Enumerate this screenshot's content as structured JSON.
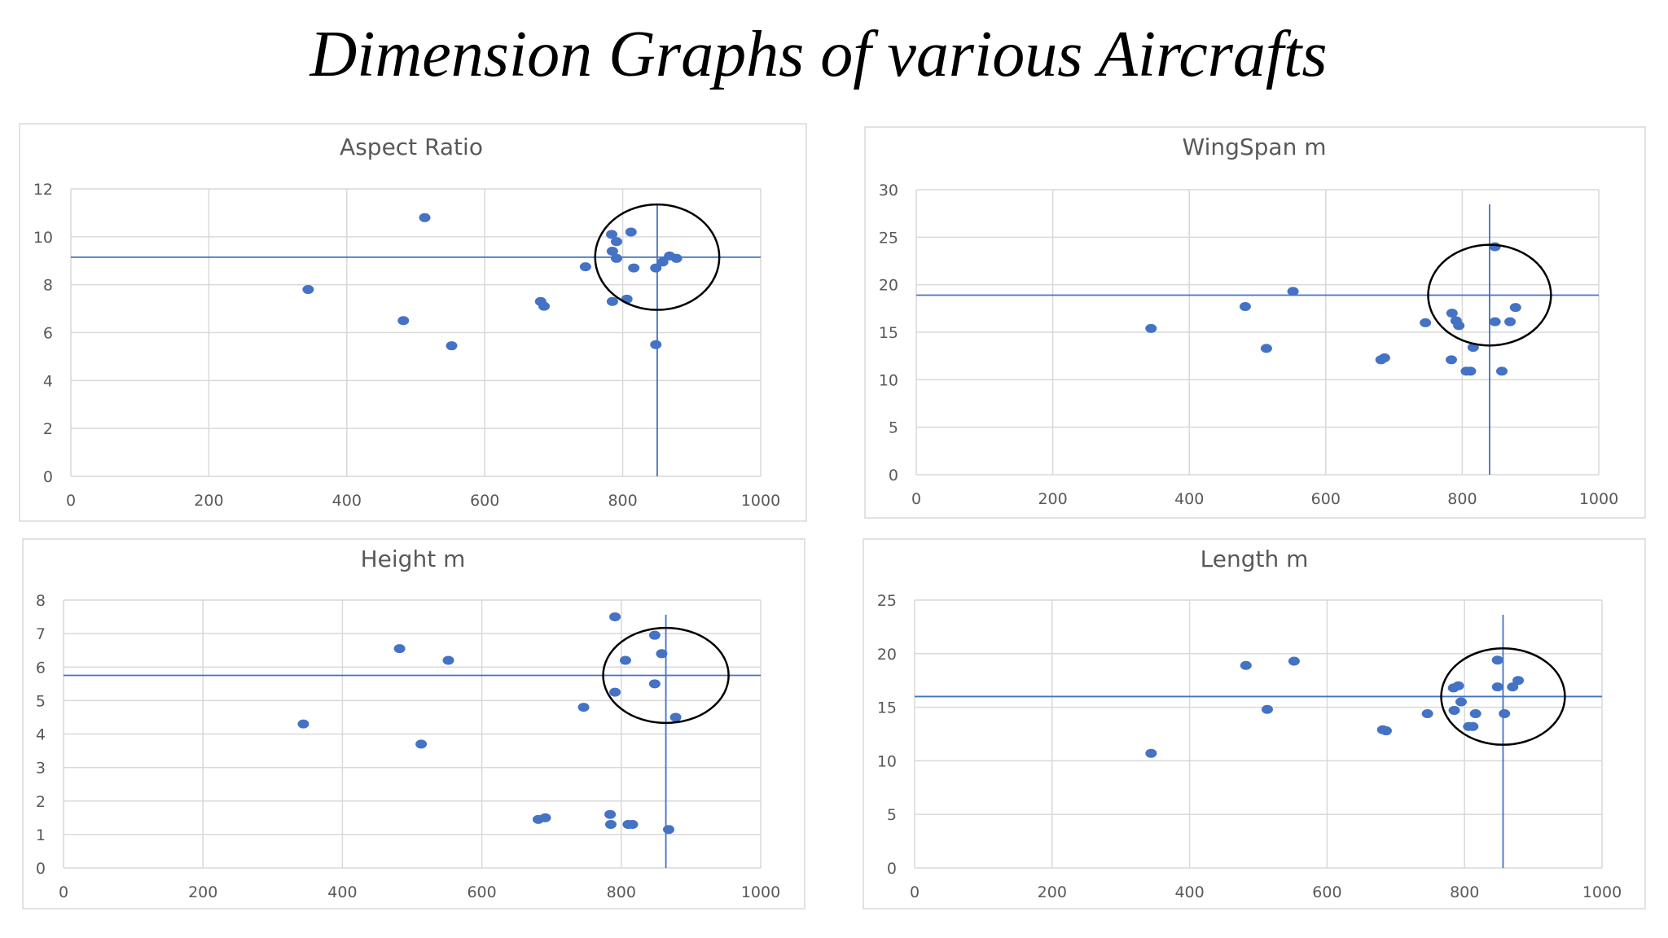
{
  "page": {
    "title": "Dimension Graphs of various Aircrafts"
  },
  "colors": {
    "point": "#4472C4",
    "reference_line": "#4472C4",
    "gridline": "#D9D9D9",
    "axis_text": "#595959",
    "title_text": "#595959",
    "highlight_circle": "#000000"
  },
  "chart_data": [
    {
      "type": "scatter",
      "title": "Aspect Ratio",
      "xlim": [
        0,
        1000
      ],
      "ylim": [
        0,
        12
      ],
      "xticks": [
        0,
        200,
        400,
        600,
        800,
        1000
      ],
      "yticks": [
        0,
        2,
        4,
        6,
        8,
        10,
        12
      ],
      "grid": true,
      "points": [
        {
          "x": 344,
          "y": 7.8
        },
        {
          "x": 482,
          "y": 6.5
        },
        {
          "x": 513,
          "y": 10.8
        },
        {
          "x": 552,
          "y": 5.45
        },
        {
          "x": 681,
          "y": 7.3
        },
        {
          "x": 686,
          "y": 7.1
        },
        {
          "x": 746,
          "y": 8.75
        },
        {
          "x": 784,
          "y": 10.1
        },
        {
          "x": 785,
          "y": 9.4
        },
        {
          "x": 785,
          "y": 7.3
        },
        {
          "x": 791,
          "y": 9.8
        },
        {
          "x": 791,
          "y": 9.1
        },
        {
          "x": 806,
          "y": 7.4
        },
        {
          "x": 812,
          "y": 10.2
        },
        {
          "x": 816,
          "y": 8.7
        },
        {
          "x": 848,
          "y": 8.7
        },
        {
          "x": 848,
          "y": 5.5
        },
        {
          "x": 858,
          "y": 8.95
        },
        {
          "x": 868,
          "y": 9.2
        },
        {
          "x": 878,
          "y": 9.1
        }
      ],
      "reference": {
        "x": 850,
        "y": 9.15
      },
      "highlight_circle": {
        "cx": 850,
        "cy": 9.15,
        "rx": 90,
        "ry": 2.2
      }
    },
    {
      "type": "scatter",
      "title": "WingSpan m",
      "xlim": [
        0,
        1000
      ],
      "ylim": [
        0,
        30
      ],
      "xticks": [
        0,
        200,
        400,
        600,
        800,
        1000
      ],
      "yticks": [
        0,
        5,
        10,
        15,
        20,
        25,
        30
      ],
      "grid": true,
      "points": [
        {
          "x": 344,
          "y": 15.4
        },
        {
          "x": 482,
          "y": 17.7
        },
        {
          "x": 513,
          "y": 13.3
        },
        {
          "x": 552,
          "y": 19.3
        },
        {
          "x": 681,
          "y": 12.1
        },
        {
          "x": 686,
          "y": 12.3
        },
        {
          "x": 746,
          "y": 16.0
        },
        {
          "x": 784,
          "y": 12.1
        },
        {
          "x": 785,
          "y": 17.0
        },
        {
          "x": 791,
          "y": 16.2
        },
        {
          "x": 795,
          "y": 15.7
        },
        {
          "x": 806,
          "y": 10.9
        },
        {
          "x": 812,
          "y": 10.9
        },
        {
          "x": 816,
          "y": 13.4
        },
        {
          "x": 848,
          "y": 24.0
        },
        {
          "x": 848,
          "y": 16.1
        },
        {
          "x": 858,
          "y": 10.9
        },
        {
          "x": 870,
          "y": 16.1
        },
        {
          "x": 878,
          "y": 17.6
        }
      ],
      "reference": {
        "x": 840,
        "y": 18.9
      },
      "highlight_circle": {
        "cx": 840,
        "cy": 18.9,
        "rx": 90,
        "ry": 5.3
      }
    },
    {
      "type": "scatter",
      "title": "Height m",
      "xlim": [
        0,
        1000
      ],
      "ylim": [
        0,
        8
      ],
      "xticks": [
        0,
        200,
        400,
        600,
        800,
        1000
      ],
      "yticks": [
        0,
        1,
        2,
        3,
        4,
        5,
        6,
        7,
        8
      ],
      "grid": true,
      "points": [
        {
          "x": 344,
          "y": 4.3
        },
        {
          "x": 482,
          "y": 6.55
        },
        {
          "x": 513,
          "y": 3.7
        },
        {
          "x": 552,
          "y": 6.2
        },
        {
          "x": 681,
          "y": 1.45
        },
        {
          "x": 691,
          "y": 1.5
        },
        {
          "x": 746,
          "y": 4.8
        },
        {
          "x": 784,
          "y": 1.6
        },
        {
          "x": 785,
          "y": 1.3
        },
        {
          "x": 791,
          "y": 7.5
        },
        {
          "x": 791,
          "y": 5.25
        },
        {
          "x": 806,
          "y": 6.2
        },
        {
          "x": 810,
          "y": 1.3
        },
        {
          "x": 816,
          "y": 1.3
        },
        {
          "x": 848,
          "y": 6.95
        },
        {
          "x": 848,
          "y": 5.5
        },
        {
          "x": 858,
          "y": 6.4
        },
        {
          "x": 868,
          "y": 1.15
        },
        {
          "x": 878,
          "y": 4.5
        }
      ],
      "reference": {
        "x": 864,
        "y": 5.75
      },
      "highlight_circle": {
        "cx": 864,
        "cy": 5.75,
        "rx": 90,
        "ry": 1.42
      }
    },
    {
      "type": "scatter",
      "title": "Length m",
      "xlim": [
        0,
        1000
      ],
      "ylim": [
        0,
        25
      ],
      "xticks": [
        0,
        200,
        400,
        600,
        800,
        1000
      ],
      "yticks": [
        0,
        5,
        10,
        15,
        20,
        25
      ],
      "grid": true,
      "points": [
        {
          "x": 344,
          "y": 10.7
        },
        {
          "x": 482,
          "y": 18.9
        },
        {
          "x": 513,
          "y": 14.8
        },
        {
          "x": 552,
          "y": 19.3
        },
        {
          "x": 681,
          "y": 12.9
        },
        {
          "x": 686,
          "y": 12.8
        },
        {
          "x": 746,
          "y": 14.4
        },
        {
          "x": 784,
          "y": 16.8
        },
        {
          "x": 785,
          "y": 14.7
        },
        {
          "x": 791,
          "y": 17.0
        },
        {
          "x": 795,
          "y": 15.5
        },
        {
          "x": 806,
          "y": 13.2
        },
        {
          "x": 812,
          "y": 13.2
        },
        {
          "x": 816,
          "y": 14.4
        },
        {
          "x": 848,
          "y": 19.4
        },
        {
          "x": 848,
          "y": 16.9
        },
        {
          "x": 858,
          "y": 14.4
        },
        {
          "x": 870,
          "y": 16.9
        },
        {
          "x": 878,
          "y": 17.5
        }
      ],
      "reference": {
        "x": 856,
        "y": 16.0
      },
      "highlight_circle": {
        "cx": 856,
        "cy": 16.0,
        "rx": 90,
        "ry": 4.5
      }
    }
  ]
}
